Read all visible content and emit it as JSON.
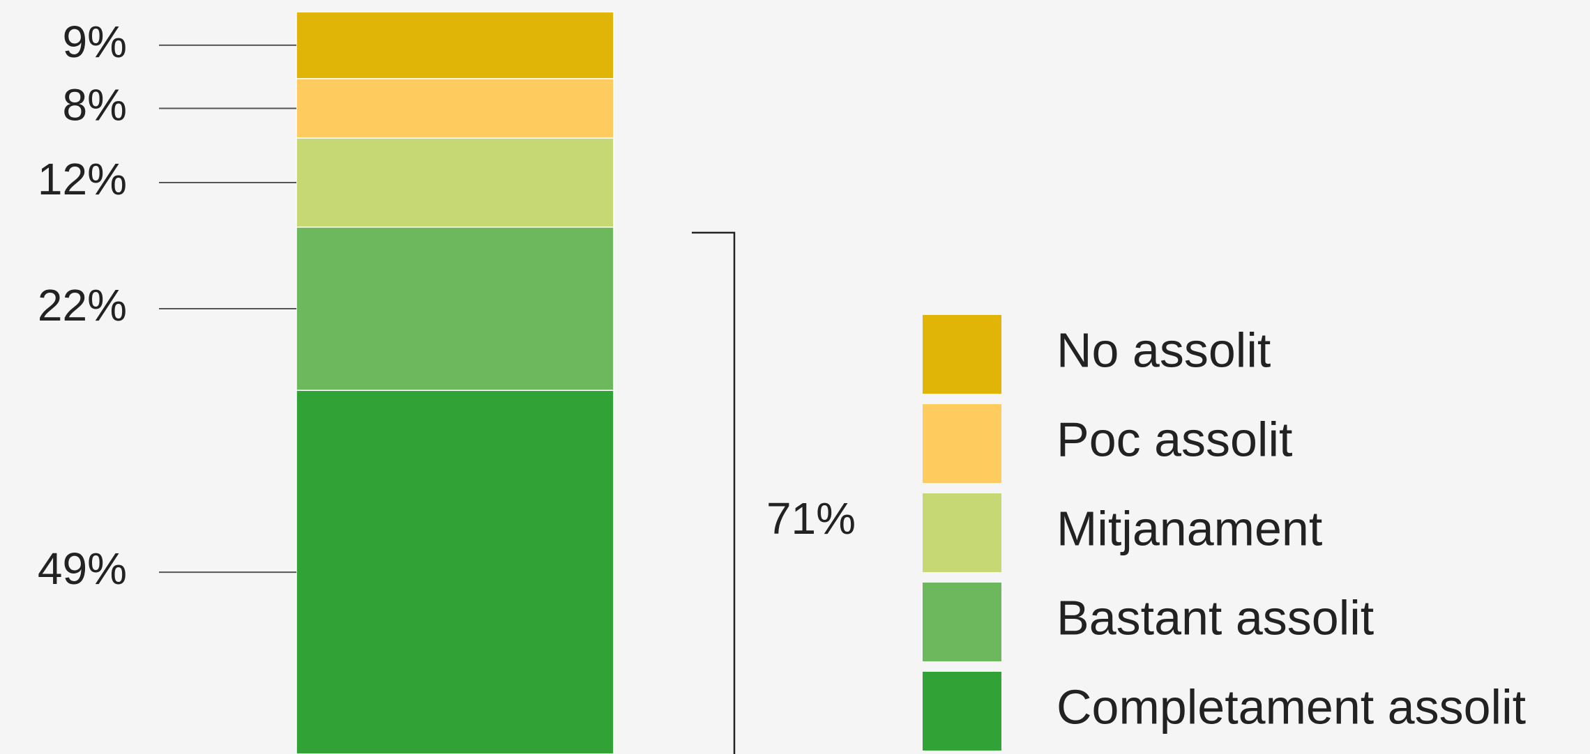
{
  "chart_data": {
    "type": "stacked-bar",
    "series": [
      {
        "name": "No assolit",
        "color": "#e0b507",
        "values": [
          9
        ],
        "value_labels": [
          "9%"
        ]
      },
      {
        "name": "Poc assolit",
        "color": "#fecb5f",
        "values": [
          8
        ],
        "value_labels": [
          "8%"
        ]
      },
      {
        "name": "Mitjanament",
        "color": "#c5d874",
        "values": [
          12
        ],
        "value_labels": [
          "12%"
        ]
      },
      {
        "name": "Bastant assolit",
        "color": "#6db85c",
        "values": [
          22
        ],
        "value_labels": [
          "22%"
        ]
      },
      {
        "name": "Completament assolit",
        "color": "#30a236",
        "values": [
          49
        ],
        "value_labels": [
          "49%"
        ]
      }
    ],
    "annotations": [
      {
        "text": "71%"
      }
    ]
  }
}
